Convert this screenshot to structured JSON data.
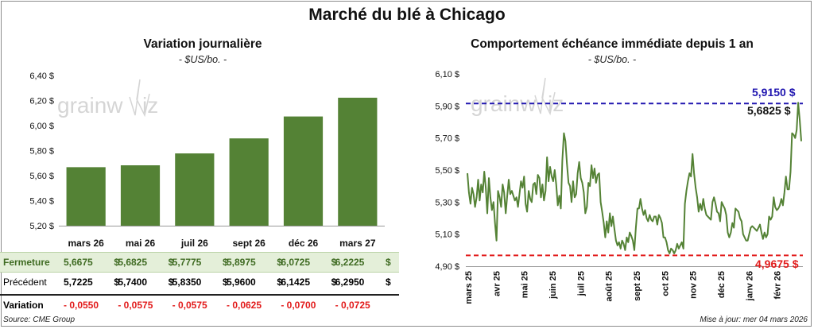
{
  "title": "Marché du blé à Chicago",
  "brand": "grainwiz",
  "colors": {
    "bar": "#548235",
    "line": "#548235",
    "high": "#2016b0",
    "low": "#e21b1b"
  },
  "chart_data": [
    {
      "type": "bar",
      "title": "Variation journalière",
      "unit": "- $US/bo. -",
      "categories": [
        "mars 26",
        "mai 26",
        "juil 26",
        "sept 26",
        "déc 26",
        "mars 27"
      ],
      "values": [
        5.6675,
        5.6825,
        5.7775,
        5.8975,
        6.0725,
        6.2225
      ],
      "ylim": [
        5.2,
        6.4
      ],
      "yticks": [
        "5,20 $",
        "5,40 $",
        "5,60 $",
        "5,80 $",
        "6,00 $",
        "6,20 $",
        "6,40 $"
      ]
    },
    {
      "type": "line",
      "title": "Comportement échéance immédiate depuis 1 an",
      "unit": "- $US/bo. -",
      "ylim": [
        4.9,
        6.1
      ],
      "yticks": [
        "4,90 $",
        "5,10 $",
        "5,30 $",
        "5,50 $",
        "5,70 $",
        "5,90 $",
        "6,10 $"
      ],
      "xticks": [
        "mars 25",
        "avr 25",
        "mai 25",
        "juin 25",
        "juil 25",
        "août 25",
        "sept 25",
        "oct 25",
        "nov 25",
        "déc 25",
        "janv 26",
        "févr 26"
      ],
      "high": {
        "value": 5.915,
        "label": "5,9150 $"
      },
      "low": {
        "value": 4.9675,
        "label": "4,9675 $"
      },
      "last": {
        "value": 5.6825,
        "label": "5,6825 $"
      },
      "series": [
        {
          "name": "Échéance immédiate",
          "values": [
            5.48,
            5.36,
            5.29,
            5.39,
            5.35,
            5.27,
            5.33,
            5.44,
            5.31,
            5.41,
            5.36,
            5.49,
            5.39,
            5.23,
            5.45,
            5.33,
            5.25,
            5.3,
            5.17,
            5.06,
            5.37,
            5.33,
            5.27,
            5.41,
            5.36,
            5.23,
            5.34,
            5.44,
            5.35,
            5.37,
            5.34,
            5.31,
            5.33,
            5.27,
            5.35,
            5.43,
            5.39,
            5.46,
            5.29,
            5.24,
            5.37,
            5.32,
            5.3,
            5.41,
            5.42,
            5.35,
            5.47,
            5.45,
            5.33,
            5.41,
            5.31,
            5.37,
            5.58,
            5.43,
            5.52,
            5.46,
            5.43,
            5.5,
            5.41,
            5.28,
            5.34,
            5.26,
            5.56,
            5.73,
            5.68,
            5.54,
            5.42,
            5.4,
            5.3,
            5.43,
            5.33,
            5.35,
            5.48,
            5.55,
            5.45,
            5.42,
            5.36,
            5.23,
            5.27,
            5.42,
            5.4,
            5.53,
            5.45,
            5.51,
            5.42,
            5.47,
            5.48,
            5.3,
            5.24,
            5.17,
            5.08,
            5.18,
            5.11,
            5.23,
            5.15,
            5.21,
            5.13,
            5.06,
            5.03,
            5.05,
            5.01,
            5.06,
            5.04,
            5.0,
            5.08,
            5.05,
            5.11,
            5.09,
            5.06,
            5.0,
            5.14,
            5.26,
            5.26,
            5.32,
            5.26,
            5.22,
            5.25,
            5.2,
            5.18,
            5.22,
            5.19,
            5.18,
            5.21,
            5.21,
            5.16,
            5.22,
            5.2,
            5.17,
            5.08,
            5.08,
            5.05,
            5.0,
            4.98,
            5.01,
            5.0,
            4.98,
            5.0,
            5.04,
            5.01,
            5.03,
            5.05,
            5.01,
            5.29,
            5.37,
            5.43,
            5.48,
            5.46,
            5.6,
            5.48,
            5.39,
            5.33,
            5.24,
            5.29,
            5.25,
            5.32,
            5.26,
            5.22,
            5.21,
            5.2,
            5.19,
            5.3,
            5.33,
            5.29,
            5.24,
            5.23,
            5.18,
            5.3,
            5.28,
            5.26,
            5.22,
            5.11,
            5.08,
            5.11,
            5.17,
            5.14,
            5.26,
            5.25,
            5.24,
            5.2,
            5.18,
            5.1,
            5.08,
            5.06,
            5.06,
            5.1,
            5.14,
            5.15,
            5.14,
            5.13,
            5.12,
            5.14,
            5.16,
            5.11,
            5.07,
            5.11,
            5.08,
            5.1,
            5.21,
            5.19,
            5.21,
            5.33,
            5.27,
            5.25,
            5.26,
            5.28,
            5.32,
            5.28,
            5.36,
            5.46,
            5.38,
            5.38,
            5.49,
            5.73,
            5.72,
            5.7,
            5.75,
            5.92,
            5.81,
            5.68
          ]
        }
      ]
    }
  ],
  "table": {
    "rows": [
      {
        "label": "Fermeture",
        "values": [
          "5,6675",
          "5,6825",
          "5,7775",
          "5,8975",
          "6,0725",
          "6,2225"
        ],
        "suffix": "$"
      },
      {
        "label": "Précédent",
        "values": [
          "5,7225",
          "5,7400",
          "5,8350",
          "5,9600",
          "6,1425",
          "6,2950"
        ],
        "suffix": "$"
      },
      {
        "label": "Variation",
        "values": [
          "- 0,0550",
          "- 0,0575",
          "- 0,0575",
          "- 0,0625",
          "- 0,0700",
          "- 0,0725"
        ],
        "suffix": ""
      }
    ]
  },
  "footer": {
    "source": "Source: CME Group",
    "updated": "Mise à jour: mer 04 mars 2026"
  }
}
